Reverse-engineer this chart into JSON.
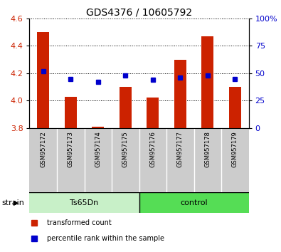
{
  "title": "GDS4376 / 10605792",
  "samples": [
    "GSM957172",
    "GSM957173",
    "GSM957174",
    "GSM957175",
    "GSM957176",
    "GSM957177",
    "GSM957178",
    "GSM957179"
  ],
  "transformed_count": [
    4.5,
    4.03,
    3.81,
    4.1,
    4.02,
    4.3,
    4.47,
    4.1
  ],
  "percentile_rank": [
    52,
    45,
    42,
    48,
    44,
    46,
    48,
    45
  ],
  "bar_bottom": 3.8,
  "ylim_left": [
    3.8,
    4.6
  ],
  "ylim_right": [
    0,
    100
  ],
  "yticks_left": [
    3.8,
    4.0,
    4.2,
    4.4,
    4.6
  ],
  "yticks_right": [
    0,
    25,
    50,
    75,
    100
  ],
  "bar_color": "#cc2200",
  "dot_color": "#0000cc",
  "ts65dn_color": "#c8f0c8",
  "control_color": "#55dd55",
  "xlab_bg": "#cccccc",
  "strain_label": "strain",
  "legend_bar": "transformed count",
  "legend_dot": "percentile rank within the sample",
  "title_fontsize": 10,
  "tick_fontsize": 8,
  "sample_fontsize": 6,
  "group_fontsize": 8,
  "legend_fontsize": 7,
  "bar_width": 0.45
}
